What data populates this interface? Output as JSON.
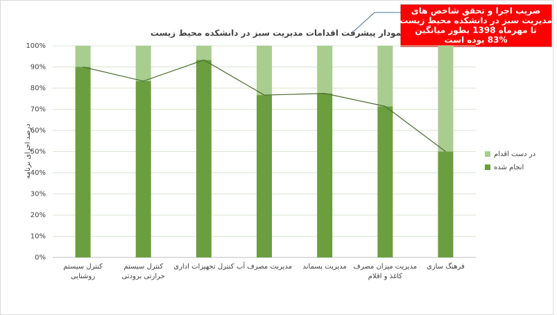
{
  "chart_data": {
    "type": "stacked_bar",
    "title": "نمودار پیشرفت اقدامات مدیریت سبز در دانشکده محیط زیست",
    "y_label": "درصد اجرای برنامه",
    "annotation": [
      "ضریب اجرا و تحقق شاخص های",
      "مدیریت سبز در دانشکده محیط زیست",
      "تا مهرماه 1398 بطور میانگین",
      "83% بوده است"
    ],
    "categories": [
      [
        "کنترل سیستم",
        "روشنایی"
      ],
      [
        "کنترل سیستم",
        "حرارتی برودتی"
      ],
      [
        "کنترل تجهیزات اداری"
      ],
      [
        "مدیریت مصرف آب"
      ],
      [
        "مدیریت پسماند"
      ],
      [
        "مدیریت میزان مصرف",
        "کاغذ و اقلام"
      ],
      [
        "فرهنگ سازی"
      ]
    ],
    "series": [
      {
        "name": "انجام شده",
        "color": "#6a9e3f",
        "values": [
          90,
          83.3,
          93.3,
          76.7,
          77.5,
          71.4,
          50
        ]
      },
      {
        "name": "در دست اقدام",
        "color": "#a9cd8f",
        "values": [
          10,
          16.7,
          6.7,
          23.3,
          22.5,
          28.6,
          50
        ]
      }
    ],
    "line_color": "#4a6b2e",
    "ylim": [
      0,
      100
    ],
    "yticks": [
      {
        "value": 0,
        "label": "0%"
      },
      {
        "value": 10,
        "label": "10%"
      },
      {
        "value": 20,
        "label": "20%"
      },
      {
        "value": 30,
        "label": "30%"
      },
      {
        "value": 40,
        "label": "40%"
      },
      {
        "value": 50,
        "label": "50%"
      },
      {
        "value": 60,
        "label": "60%"
      },
      {
        "value": 70,
        "label": "70%"
      },
      {
        "value": 80,
        "label": "80%"
      },
      {
        "value": 90,
        "label": "90%"
      },
      {
        "value": 100,
        "label": "100%"
      }
    ],
    "grid": true
  }
}
